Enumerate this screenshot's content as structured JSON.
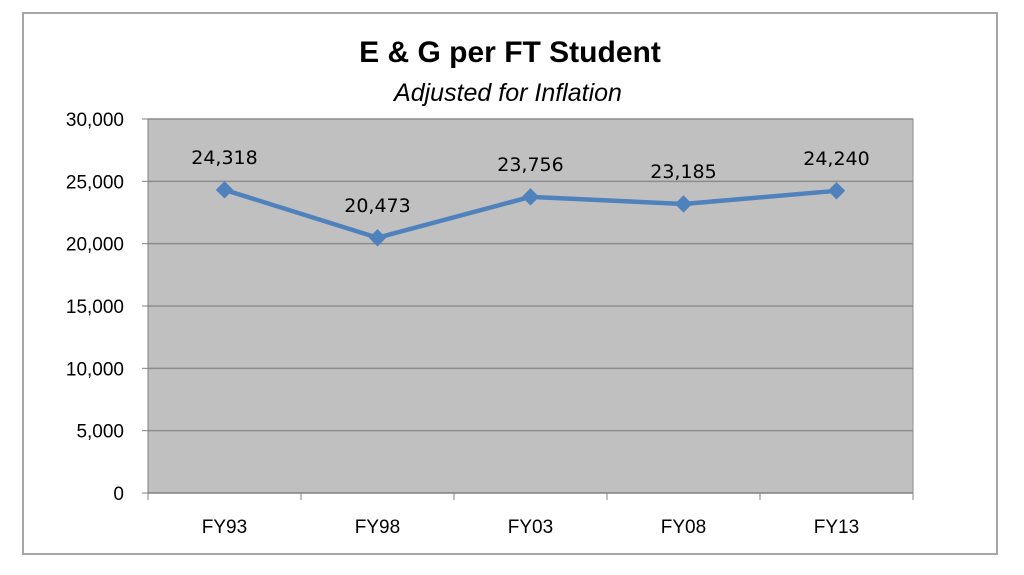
{
  "chart_data": {
    "type": "line",
    "title": "E & G per FT Student",
    "subtitle": "Adjusted for Inflation",
    "categories": [
      "FY93",
      "FY98",
      "FY03",
      "FY08",
      "FY13"
    ],
    "series": [
      {
        "name": "E & G per FT Student",
        "values": [
          24318,
          20473,
          23756,
          23185,
          24240
        ],
        "labels": [
          "24,318",
          "20,473",
          "23,756",
          "23,185",
          "24,240"
        ],
        "color": "#4f81bd",
        "marker": "diamond"
      }
    ],
    "ylim": [
      0,
      30000
    ],
    "yticks": [
      0,
      5000,
      10000,
      15000,
      20000,
      25000,
      30000
    ],
    "ytick_labels": [
      "0",
      "5,000",
      "10,000",
      "15,000",
      "20,000",
      "25,000",
      "30,000"
    ],
    "xlabel": "",
    "ylabel": "",
    "grid": true,
    "legend": "none",
    "plot_background": "#c0c0c0",
    "gridline_color": "#8c8c8c"
  }
}
